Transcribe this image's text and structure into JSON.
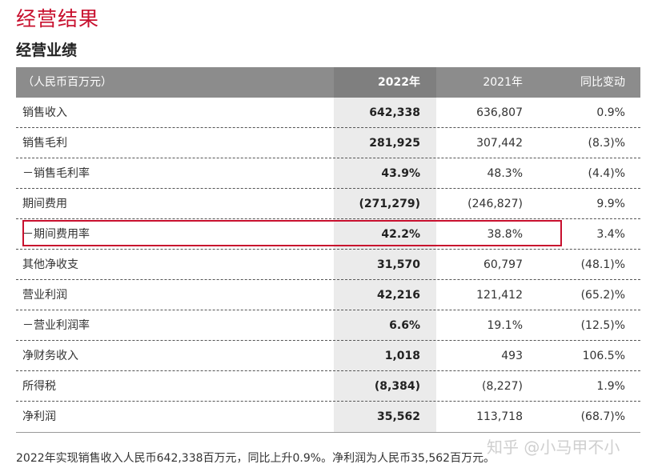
{
  "section_title": "经营结果",
  "sub_title": "经营业绩",
  "table": {
    "headers": [
      "（人民币百万元）",
      "2022年",
      "2021年",
      "同比变动"
    ],
    "rows": [
      {
        "label": "销售收入",
        "y2022": "642,338",
        "y2021": "636,807",
        "change": "0.9%"
      },
      {
        "label": "销售毛利",
        "y2022": "281,925",
        "y2021": "307,442",
        "change": "(8.3)%"
      },
      {
        "label": "－销售毛利率",
        "y2022": "43.9%",
        "y2021": "48.3%",
        "change": "(4.4)%"
      },
      {
        "label": "期间费用",
        "y2022": "(271,279)",
        "y2021": "(246,827)",
        "change": "9.9%"
      },
      {
        "label": "－期间费用率",
        "y2022": "42.2%",
        "y2021": "38.8%",
        "change": "3.4%"
      },
      {
        "label": "其他净收支",
        "y2022": "31,570",
        "y2021": "60,797",
        "change": "(48.1)%"
      },
      {
        "label": "营业利润",
        "y2022": "42,216",
        "y2021": "121,412",
        "change": "(65.2)%"
      },
      {
        "label": "－营业利润率",
        "y2022": "6.6%",
        "y2021": "19.1%",
        "change": "(12.5)%"
      },
      {
        "label": "净财务收入",
        "y2022": "1,018",
        "y2021": "493",
        "change": "106.5%"
      },
      {
        "label": "所得税",
        "y2022": "(8,384)",
        "y2021": "(8,227)",
        "change": "1.9%"
      },
      {
        "label": "净利润",
        "y2022": "35,562",
        "y2021": "113,718",
        "change": "(68.7)%"
      }
    ]
  },
  "footnote": "2022年实现销售收入人民币642,338百万元，同比上升0.9%。净利润为人民币35,562百万元。",
  "watermark": "知乎 @小马甲不小",
  "colors": {
    "accent": "#c8102e",
    "header_bg": "#8c8c8c",
    "highlight_col_bg": "#ebebeb"
  }
}
